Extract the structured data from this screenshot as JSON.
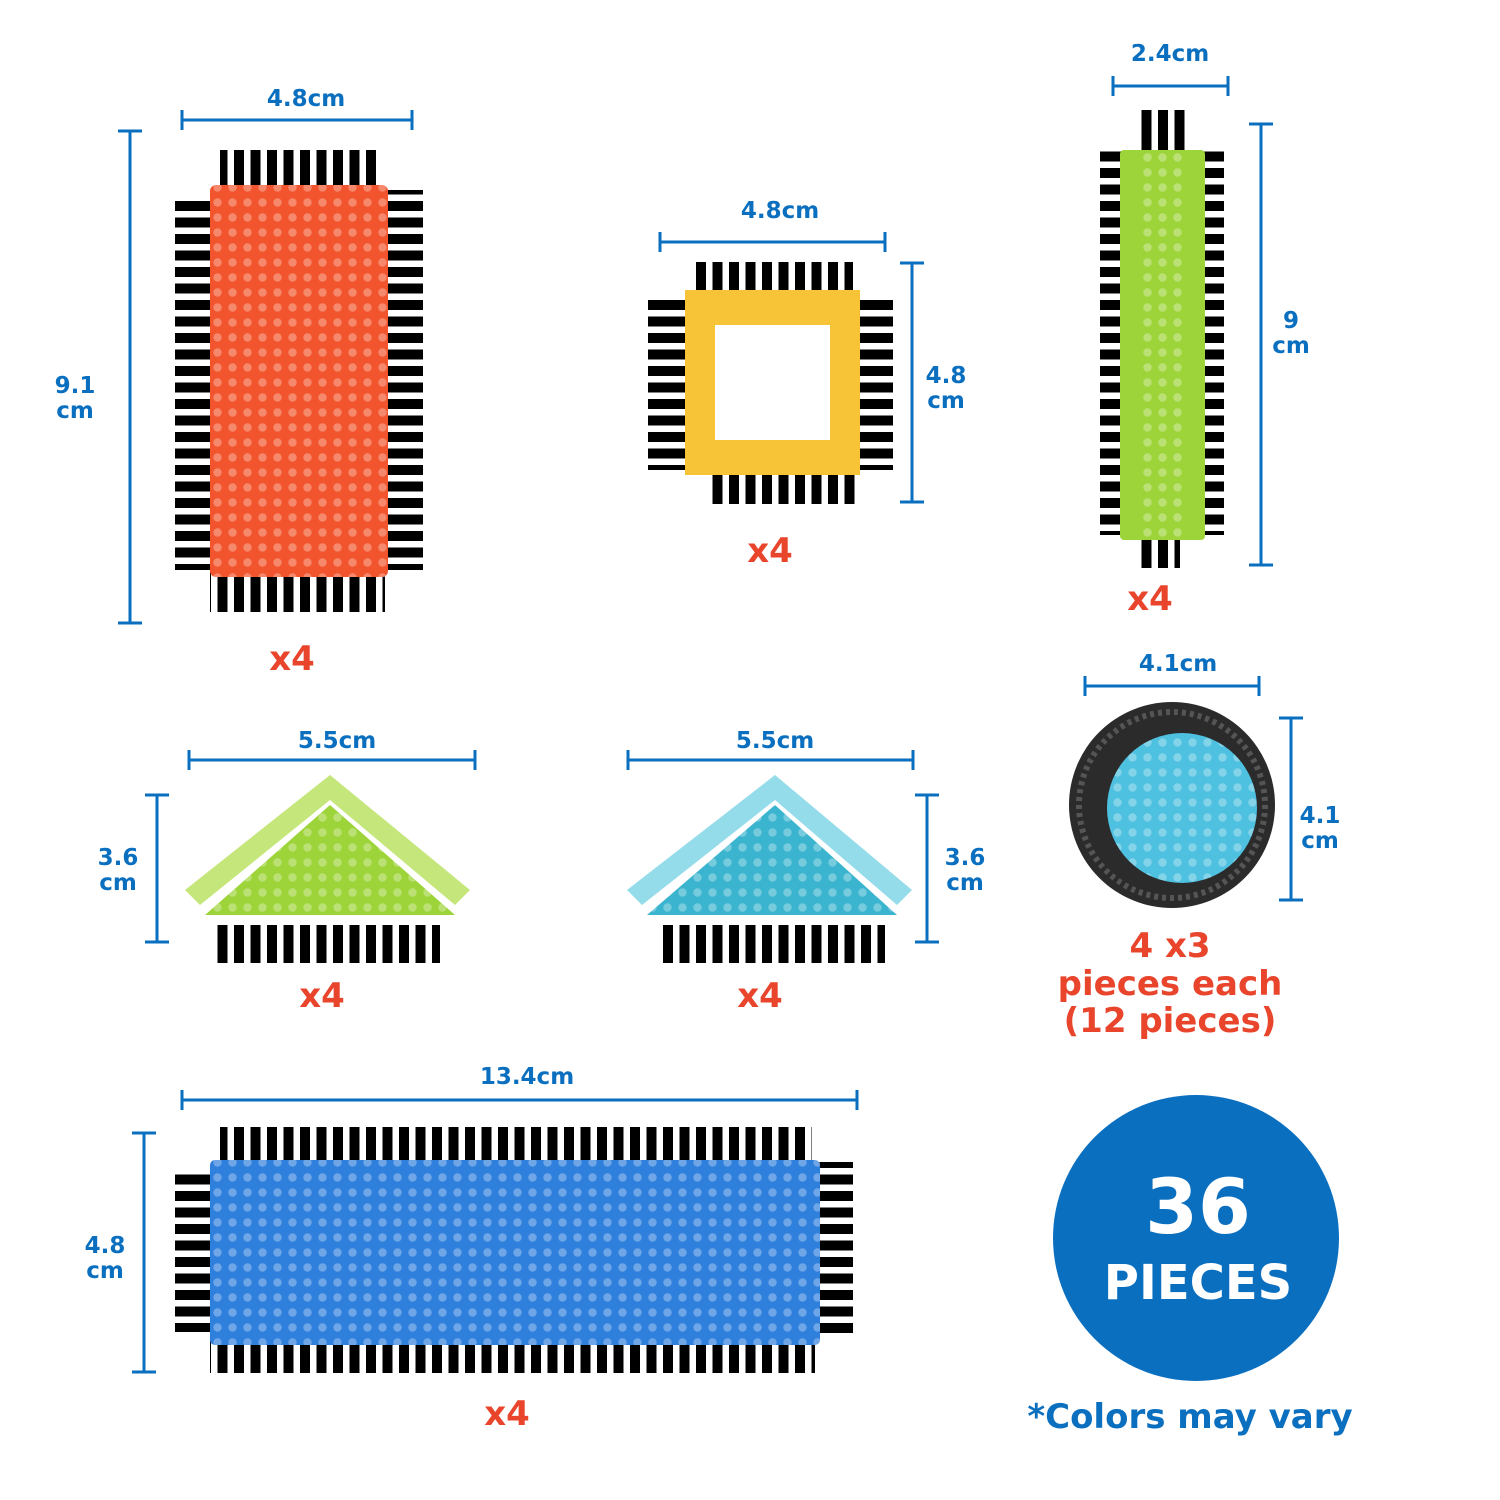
{
  "colors": {
    "dimension": "#0a6fbf",
    "count": "#e8452c",
    "badge": "#0b6fc0"
  },
  "pieces": [
    {
      "name": "red-rectangle",
      "color": "#f2542d",
      "width": "4.8cm",
      "height_value": "9.1",
      "height_unit": "cm",
      "count": "x4"
    },
    {
      "name": "yellow-square-frame",
      "color": "#f6c436",
      "width": "4.8cm",
      "height_value": "4.8",
      "height_unit": "cm",
      "count": "x4"
    },
    {
      "name": "green-strip",
      "color": "#9dd43a",
      "width": "2.4cm",
      "height_value": "9",
      "height_unit": "cm",
      "count": "x4"
    },
    {
      "name": "green-triangle",
      "color": "#a6d63c",
      "width": "5.5cm",
      "height_value": "3.6",
      "height_unit": "cm",
      "count": "x4"
    },
    {
      "name": "cyan-triangle",
      "color": "#5cc5dc",
      "width": "5.5cm",
      "height_value": "3.6",
      "height_unit": "cm",
      "count": "x4"
    },
    {
      "name": "wheel",
      "color": "#4ec0e0",
      "width": "4.1cm",
      "height_value": "4.1",
      "height_unit": "cm",
      "count_lines": [
        "4 x3",
        "pieces each",
        "(12 pieces)"
      ]
    },
    {
      "name": "blue-long-rectangle",
      "color": "#2f7fdc",
      "width": "13.4cm",
      "height_value": "4.8",
      "height_unit": "cm",
      "count": "x4"
    }
  ],
  "badge": {
    "number": "36",
    "label": "PIECES"
  },
  "note": "*Colors may vary"
}
